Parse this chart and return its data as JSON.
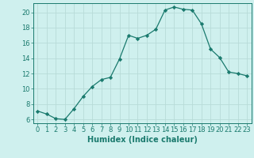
{
  "x": [
    0,
    1,
    2,
    3,
    4,
    5,
    6,
    7,
    8,
    9,
    10,
    11,
    12,
    13,
    14,
    15,
    16,
    17,
    18,
    19,
    20,
    21,
    22,
    23
  ],
  "y": [
    7.1,
    6.7,
    6.1,
    6.0,
    7.4,
    9.0,
    10.3,
    11.2,
    11.5,
    13.9,
    17.0,
    16.6,
    17.0,
    17.8,
    20.3,
    20.7,
    20.4,
    20.3,
    18.5,
    15.2,
    14.1,
    12.2,
    12.0,
    11.7
  ],
  "line_color": "#1a7a6e",
  "marker": "D",
  "marker_size": 2.2,
  "bg_color": "#cff0ee",
  "grid_color": "#b8dbd8",
  "xlabel": "Humidex (Indice chaleur)",
  "ylim": [
    5.5,
    21.2
  ],
  "xlim": [
    -0.5,
    23.5
  ],
  "yticks": [
    6,
    8,
    10,
    12,
    14,
    16,
    18,
    20
  ],
  "xticks": [
    0,
    1,
    2,
    3,
    4,
    5,
    6,
    7,
    8,
    9,
    10,
    11,
    12,
    13,
    14,
    15,
    16,
    17,
    18,
    19,
    20,
    21,
    22,
    23
  ],
  "label_fontsize": 7,
  "tick_fontsize": 6
}
